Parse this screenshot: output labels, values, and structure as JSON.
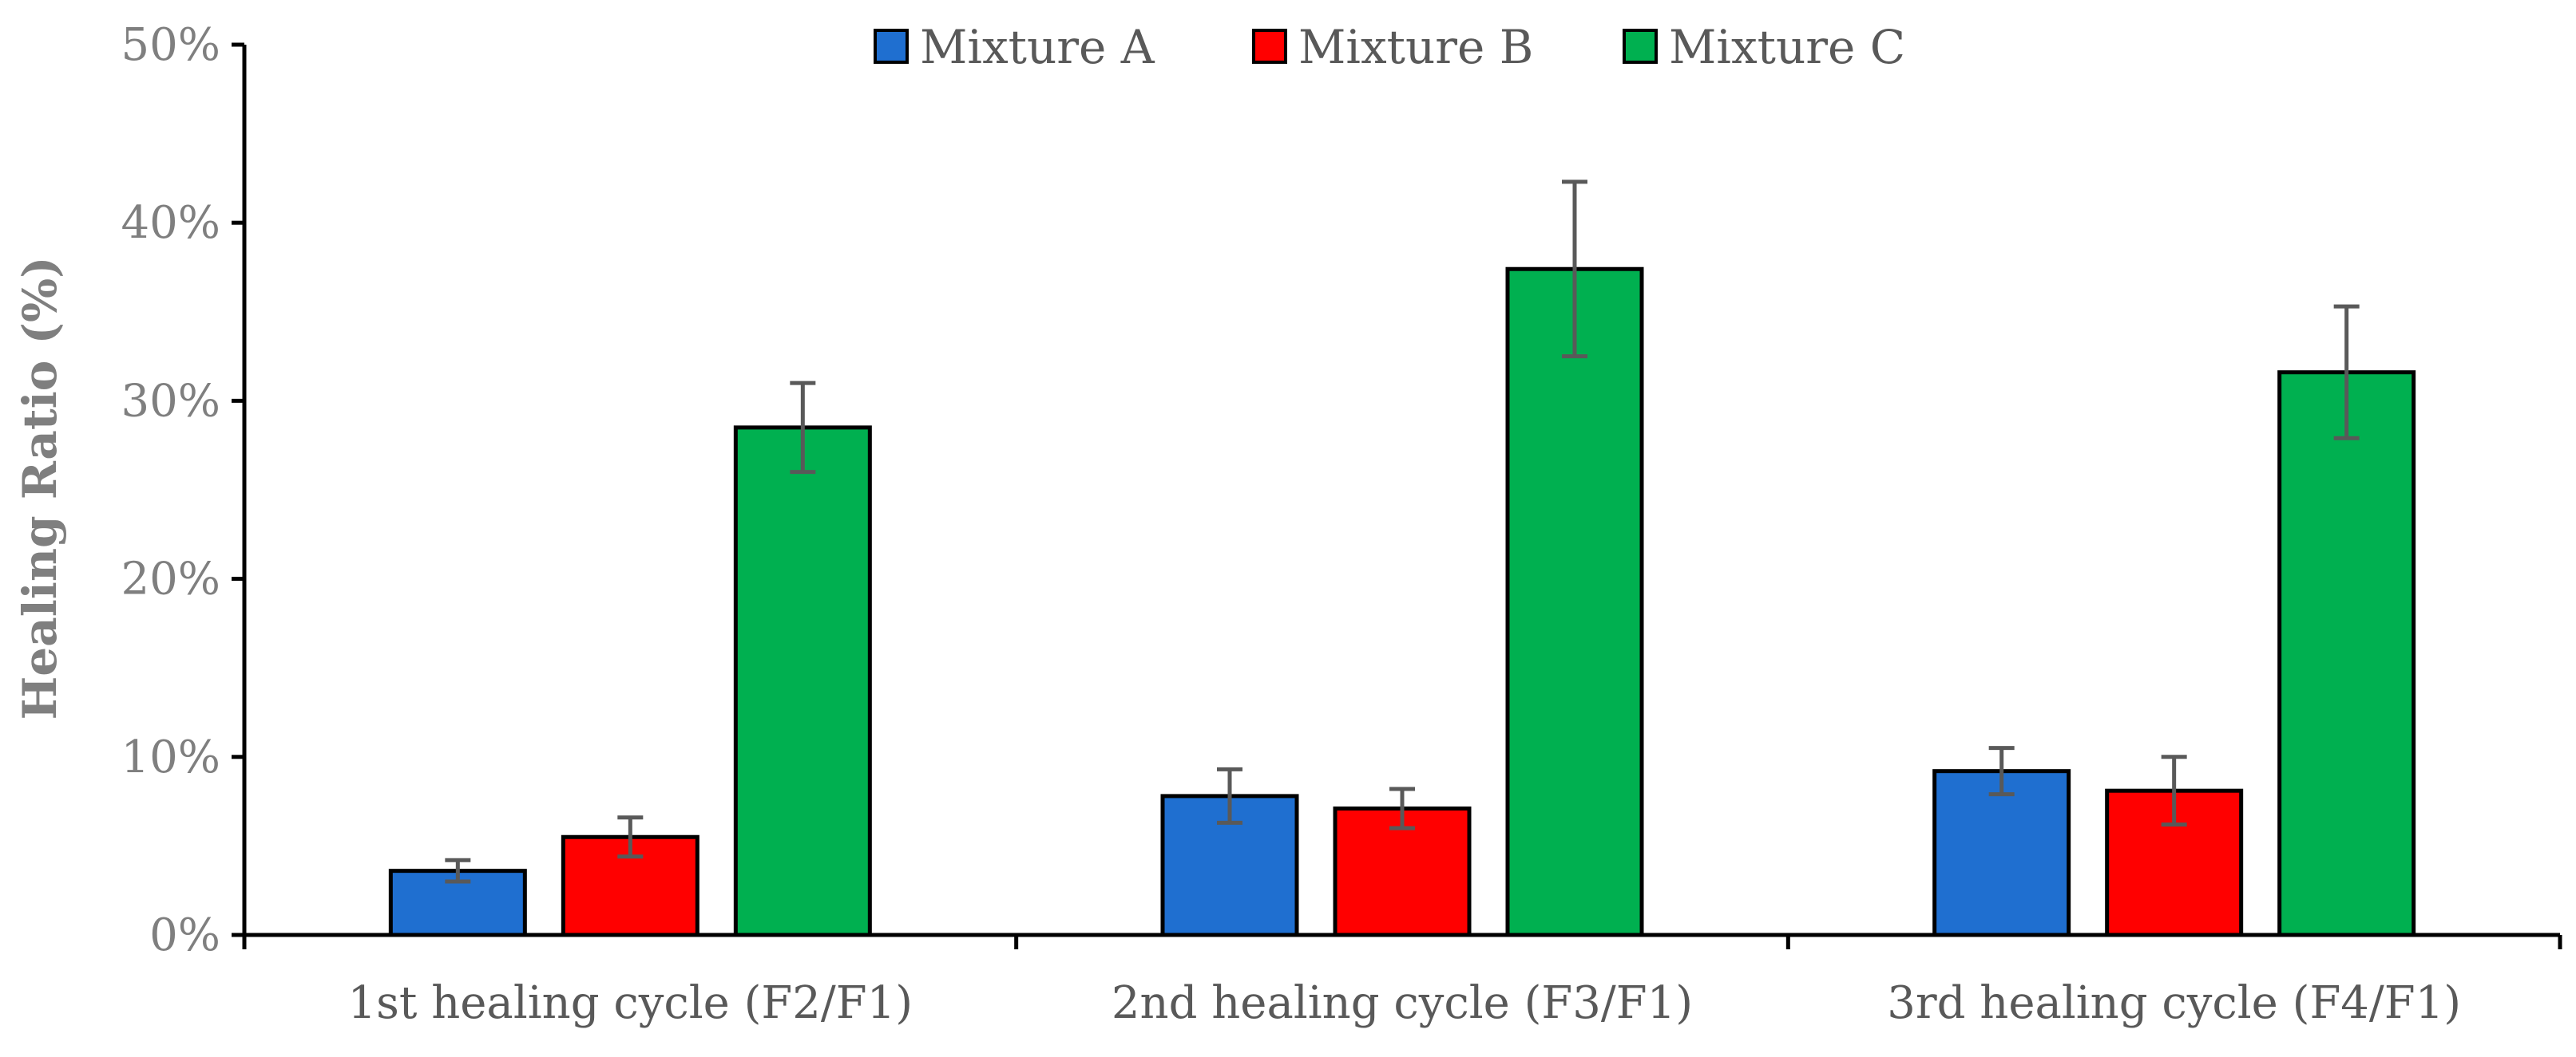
{
  "chart_data": {
    "type": "bar",
    "title": "",
    "xlabel": "",
    "ylabel": "Healing Ratio (%)",
    "ylim": [
      0,
      50
    ],
    "yticks": [
      0,
      10,
      20,
      30,
      40,
      50
    ],
    "ytick_labels": [
      "0%",
      "10%",
      "20%",
      "30%",
      "40%",
      "50%"
    ],
    "categories": [
      "1st healing cycle (F2/F1)",
      "2nd healing cycle (F3/F1)",
      "3rd healing cycle (F4/F1)"
    ],
    "series": [
      {
        "name": "Mixture A",
        "color": "#1f6fd0",
        "values": [
          3.6,
          7.8,
          9.2
        ],
        "errors": [
          0.6,
          1.5,
          1.3
        ]
      },
      {
        "name": "Mixture B",
        "color": "#ff0000",
        "values": [
          5.5,
          7.1,
          8.1
        ],
        "errors": [
          1.1,
          1.1,
          1.9
        ]
      },
      {
        "name": "Mixture C",
        "color": "#00b050",
        "values": [
          28.5,
          37.4,
          31.6
        ],
        "errors": [
          2.5,
          4.9,
          3.7
        ]
      }
    ],
    "legend": "top-center",
    "grid": false
  }
}
